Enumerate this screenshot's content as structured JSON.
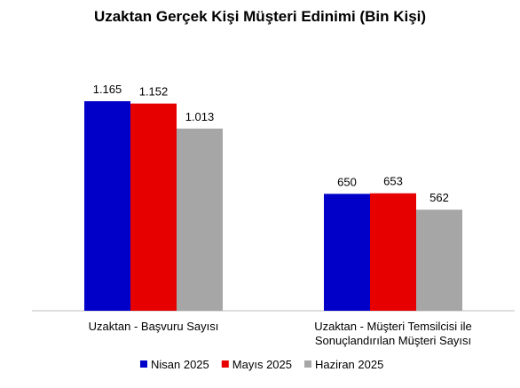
{
  "chart_data": {
    "type": "bar",
    "title": "Uzaktan Gerçek Kişi Müşteri Edinimi (Bin Kişi)",
    "categories": [
      [
        "Uzaktan - Başvuru Sayısı"
      ],
      [
        "Uzaktan - Müşteri Temsilcisi ile",
        "Sonuçlandırılan Müşteri Sayısı"
      ]
    ],
    "series": [
      {
        "name": "Nisan 2025",
        "color": "#0000C8",
        "values": [
          1165,
          650
        ],
        "labels": [
          "1.165",
          "650"
        ]
      },
      {
        "name": "Mayıs 2025",
        "color": "#E60000",
        "values": [
          1152,
          653
        ],
        "labels": [
          "1.152",
          "653"
        ]
      },
      {
        "name": "Haziran 2025",
        "color": "#A6A6A6",
        "values": [
          1013,
          562
        ],
        "labels": [
          "1.013",
          "562"
        ]
      }
    ],
    "ylim": [
      0,
      1300
    ],
    "grid": false,
    "legend": "bottom"
  }
}
